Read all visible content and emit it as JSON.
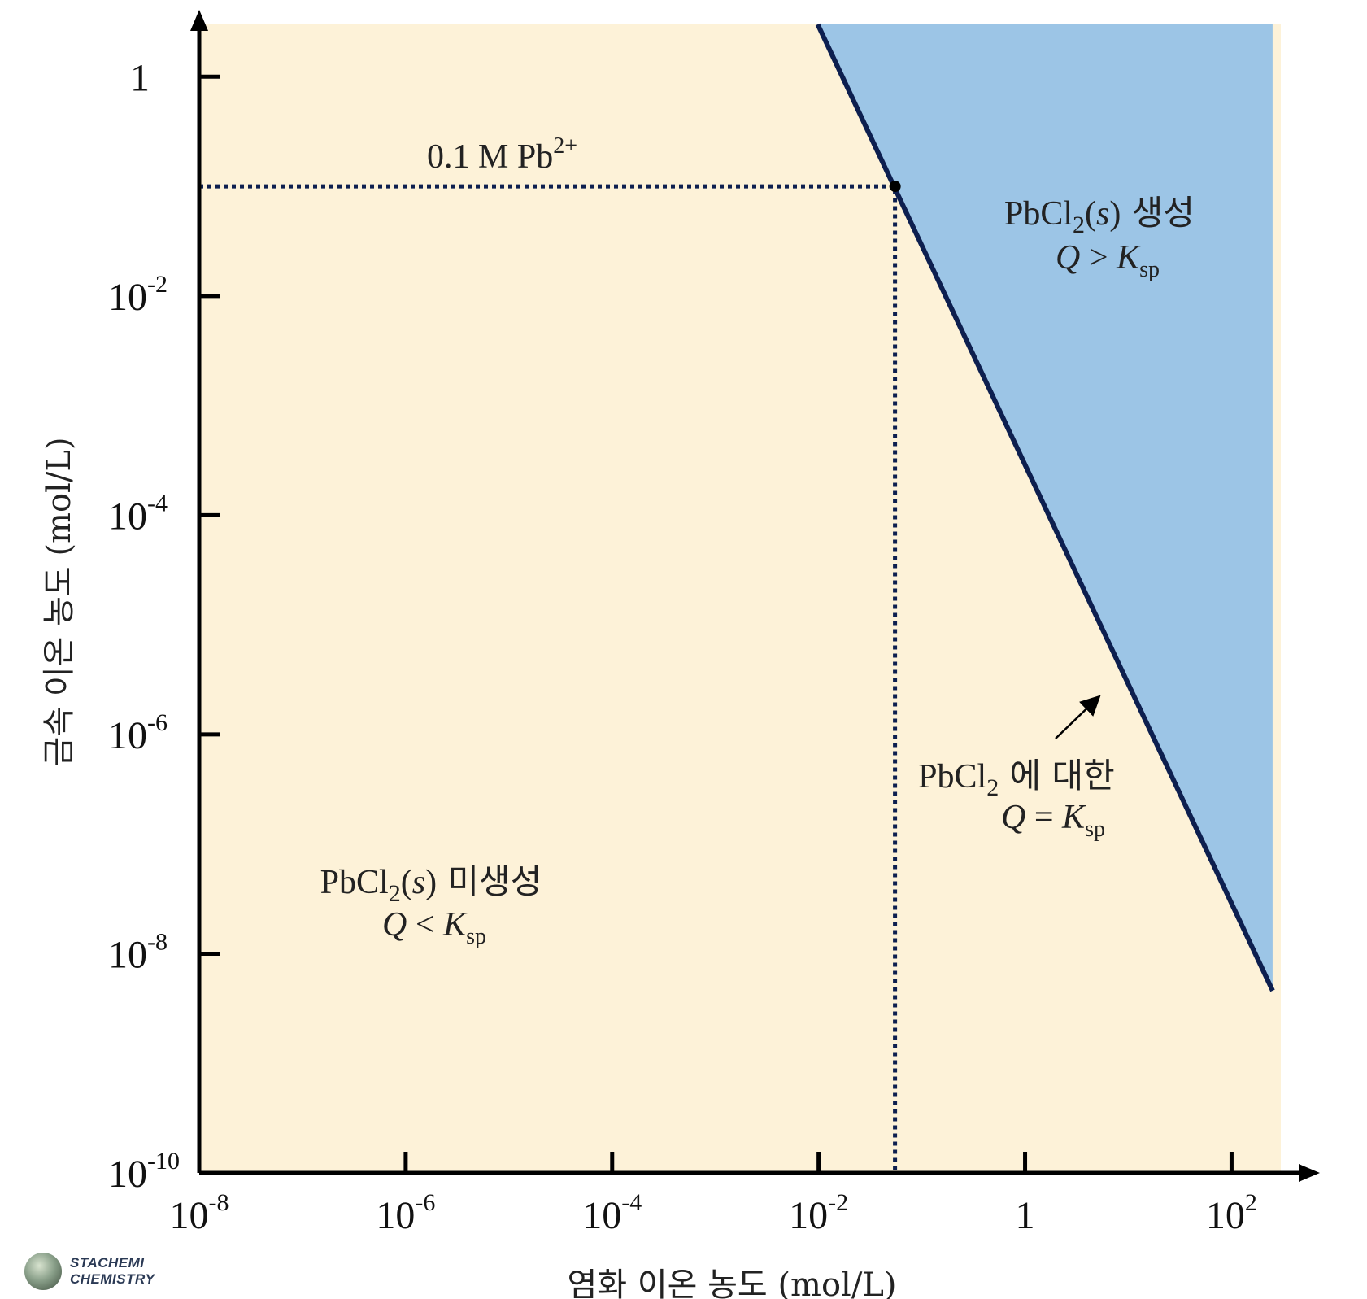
{
  "chart_data": {
    "type": "area",
    "title": "",
    "xlabel": "염화 이온 농도 (mol/L)",
    "ylabel": "금속 이온 농도 (mol/L)",
    "x_scale": "log10",
    "y_scale": "log10",
    "xlim": [
      1e-08,
      300
    ],
    "ylim": [
      1e-10,
      3
    ],
    "x_ticks": [
      {
        "value": 1e-08,
        "base": "10",
        "exp": "-8"
      },
      {
        "value": 1e-06,
        "base": "10",
        "exp": "-6"
      },
      {
        "value": 0.0001,
        "base": "10",
        "exp": "-4"
      },
      {
        "value": 0.01,
        "base": "10",
        "exp": "-2"
      },
      {
        "value": 1,
        "base": "1",
        "exp": ""
      },
      {
        "value": 100,
        "base": "10",
        "exp": "2"
      }
    ],
    "y_ticks": [
      {
        "value": 1e-10,
        "base": "10",
        "exp": "-10"
      },
      {
        "value": 1e-08,
        "base": "10",
        "exp": "-8"
      },
      {
        "value": 1e-06,
        "base": "10",
        "exp": "-6"
      },
      {
        "value": 0.0001,
        "base": "10",
        "exp": "-4"
      },
      {
        "value": 0.01,
        "base": "10",
        "exp": "-2"
      },
      {
        "value": 1,
        "base": "1",
        "exp": ""
      }
    ],
    "series": [
      {
        "name": "Q = Ksp (PbCl2)",
        "style": "solid",
        "points": [
          [
            0.0098,
            3.0
          ],
          [
            250,
            4.6e-09
          ]
        ]
      },
      {
        "name": "0.1 M Pb2+ guide",
        "style": "dotted",
        "points": [
          [
            1e-08,
            0.1
          ],
          [
            0.055,
            0.1
          ],
          [
            0.055,
            1e-10
          ]
        ]
      }
    ],
    "marker": {
      "x": 0.055,
      "y": 0.1
    },
    "regions": [
      {
        "name": "precipitate",
        "color": "#9cc5e6",
        "polygon": [
          [
            0.0098,
            3.0
          ],
          [
            250,
            3.0
          ],
          [
            250,
            4.6e-09
          ]
        ]
      },
      {
        "name": "no-precipitate",
        "color": "#fdf2d8"
      }
    ],
    "annotations": {
      "pb_label": {
        "text": "0.1 M  Pb",
        "sup": "2+"
      },
      "form_label": {
        "pre": "PbCl",
        "sub": "2",
        "open": "(",
        "s": "s",
        "close": ")",
        "post": " 생성"
      },
      "form_cond": {
        "q": "Q",
        "op": " > ",
        "k": "K",
        "sub": "sp"
      },
      "line_label": {
        "pre": "PbCl",
        "sub": "2",
        "post": " 에 대한"
      },
      "line_cond": {
        "q": "Q",
        "op": " = ",
        "k": "K",
        "sub": "sp"
      },
      "noform_label": {
        "pre": "PbCl",
        "sub": "2",
        "open": "(",
        "s": "s",
        "close": ")",
        "post": " 미생성"
      },
      "noform_cond": {
        "q": "Q",
        "op": " < ",
        "k": "K",
        "sub": "sp"
      }
    },
    "colors": {
      "line": "#0d1f4f",
      "axis": "#000000",
      "precipitate": "#9cc5e6",
      "background": "#fdf2d8"
    }
  },
  "watermark": {
    "line1": "STACHEMI",
    "line2": "CHEMISTRY"
  }
}
